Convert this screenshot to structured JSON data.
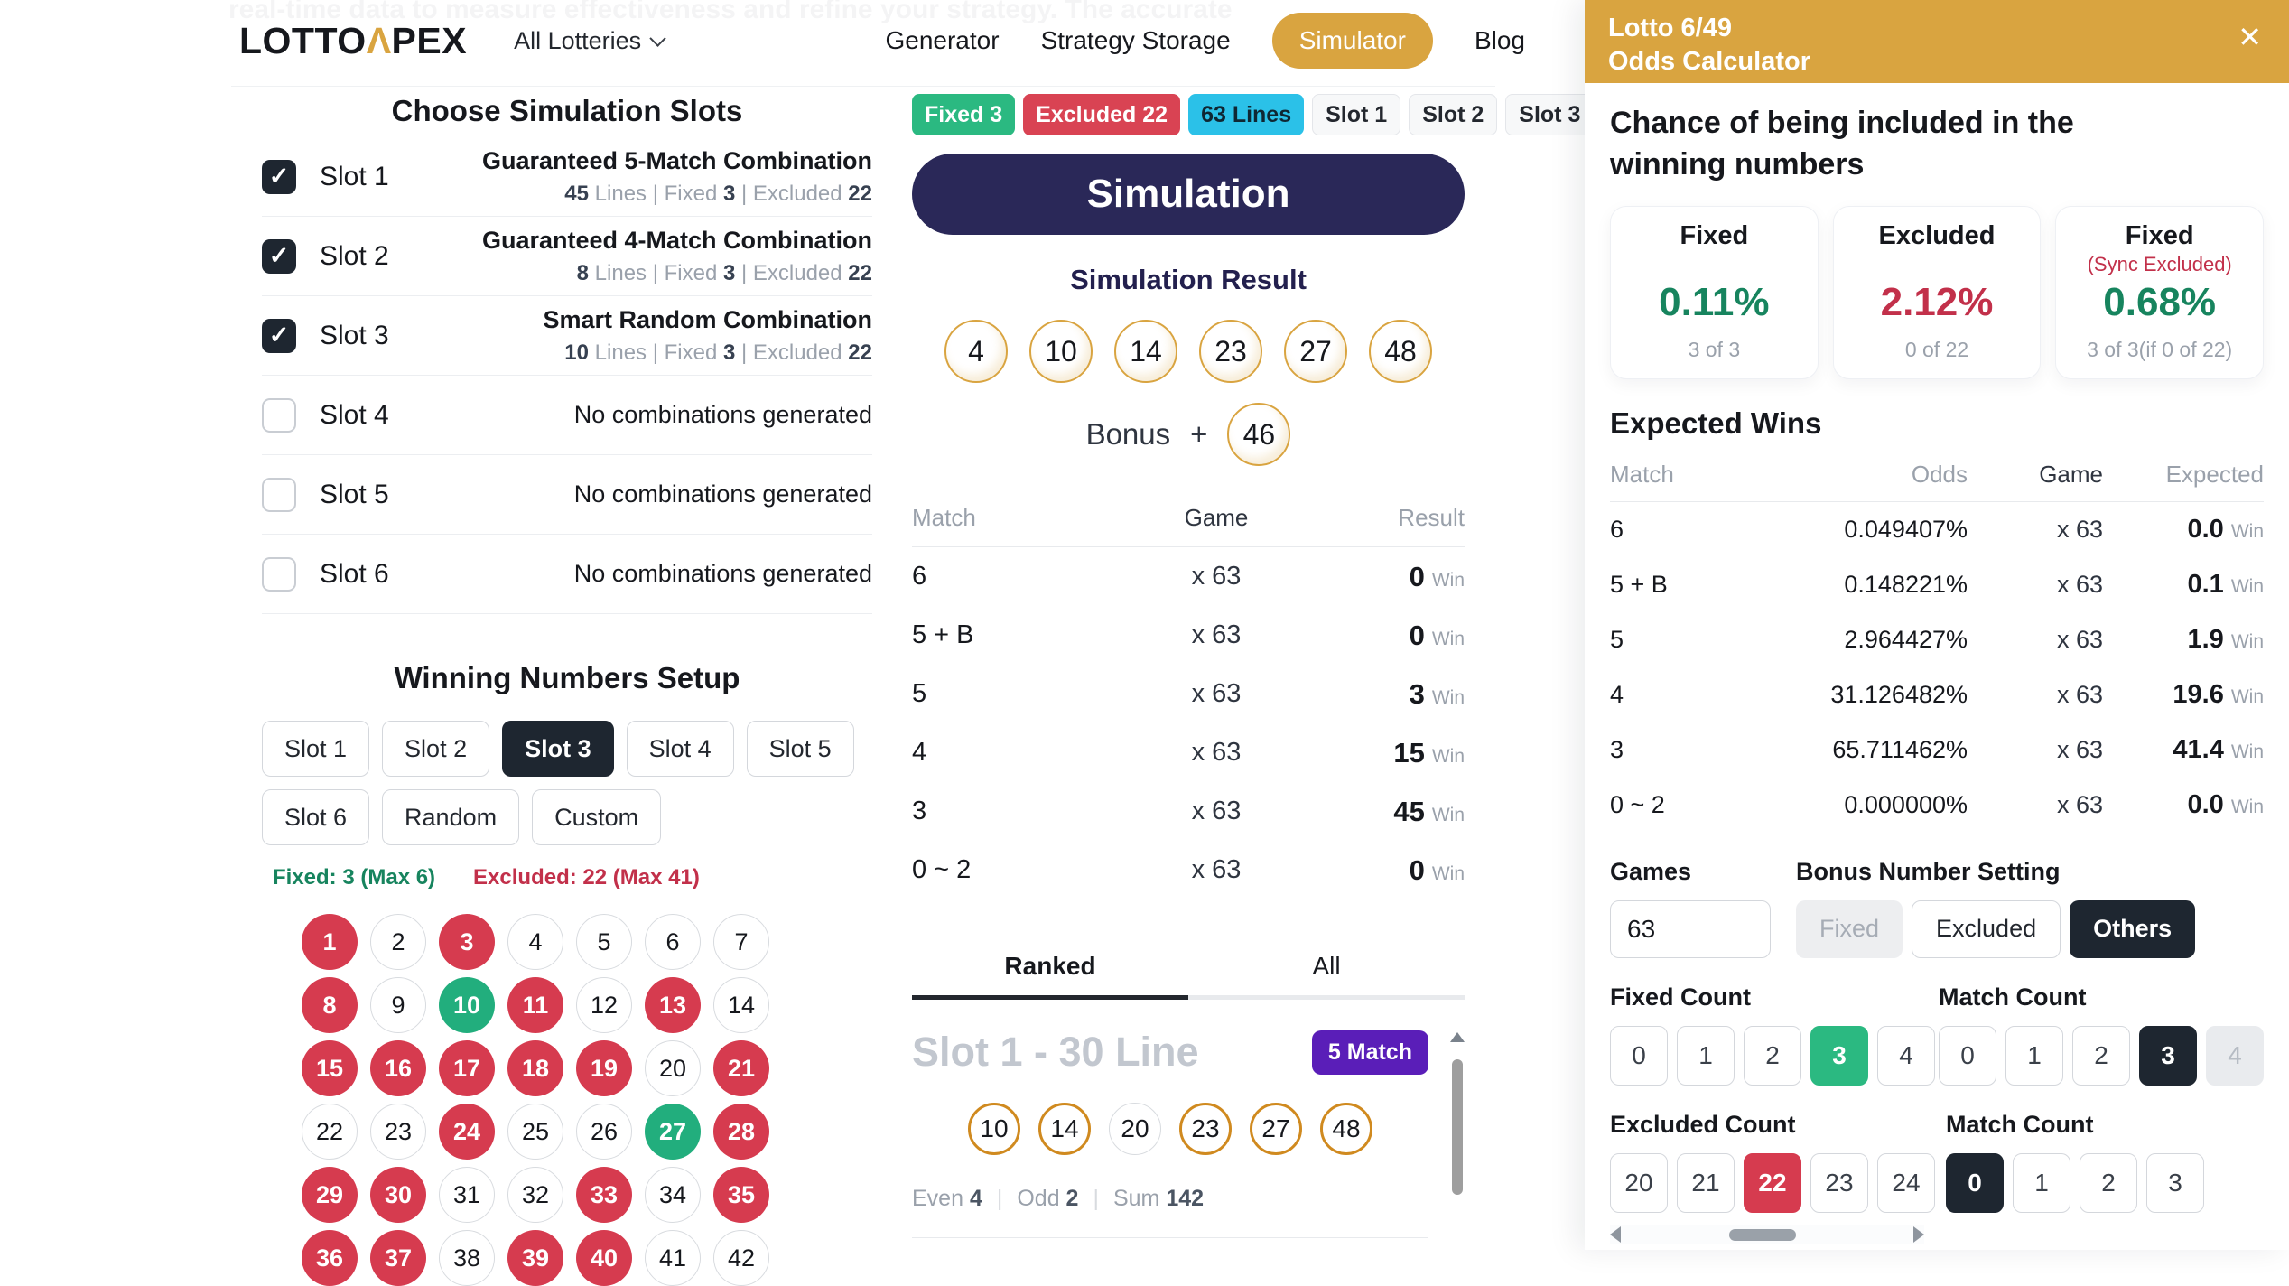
{
  "page": {
    "faint_top_text": "real-time data to measure effectiveness and refine your strategy. The accurate"
  },
  "colors": {
    "gold": "#D9A440",
    "navy": "#2A2858",
    "green": "#2BB981",
    "green_text": "#17845E",
    "red": "#D63B4F",
    "red_text": "#C2304A",
    "cyan": "#2BC1E8",
    "dark": "#1E2630",
    "purple": "#5A1EB8"
  },
  "navbar": {
    "logo": {
      "pre": "LOTTO",
      "caret": "Λ",
      "post": "PEX"
    },
    "lottery_selector": "All Lotteries",
    "links": [
      {
        "label": "Generator",
        "active": false
      },
      {
        "label": "Strategy Storage",
        "active": false
      },
      {
        "label": "Simulator",
        "active": true
      },
      {
        "label": "Blog",
        "active": false
      }
    ]
  },
  "slots_panel": {
    "heading": "Choose Simulation Slots",
    "slots": [
      {
        "label": "Slot 1",
        "checked": true,
        "title": "Guaranteed 5-Match Combination",
        "detail": "45 Lines | Fixed 3 | Excluded 22"
      },
      {
        "label": "Slot 2",
        "checked": true,
        "title": "Guaranteed 4-Match Combination",
        "detail": "8 Lines | Fixed 3 | Excluded 22"
      },
      {
        "label": "Slot 3",
        "checked": true,
        "title": "Smart Random Combination",
        "detail": "10 Lines | Fixed 3 | Excluded 22"
      },
      {
        "label": "Slot 4",
        "checked": false,
        "title": "",
        "detail": "No combinations generated"
      },
      {
        "label": "Slot 5",
        "checked": false,
        "title": "",
        "detail": "No combinations generated"
      },
      {
        "label": "Slot 6",
        "checked": false,
        "title": "",
        "detail": "No combinations generated"
      }
    ]
  },
  "winning_setup": {
    "heading": "Winning Numbers Setup",
    "buttons": [
      {
        "label": "Slot 1",
        "active": false
      },
      {
        "label": "Slot 2",
        "active": false
      },
      {
        "label": "Slot 3",
        "active": true
      },
      {
        "label": "Slot 4",
        "active": false
      },
      {
        "label": "Slot 5",
        "active": false
      },
      {
        "label": "Slot 6",
        "active": false
      },
      {
        "label": "Random",
        "active": false
      },
      {
        "label": "Custom",
        "active": false
      }
    ],
    "fixed_note": "Fixed: 3 (Max 6)",
    "excluded_note": "Excluded: 22 (Max 41)",
    "numbers": [
      {
        "n": 1,
        "state": "excluded"
      },
      {
        "n": 2,
        "state": "plain"
      },
      {
        "n": 3,
        "state": "excluded"
      },
      {
        "n": 4,
        "state": "plain"
      },
      {
        "n": 5,
        "state": "plain"
      },
      {
        "n": 6,
        "state": "plain"
      },
      {
        "n": 7,
        "state": "plain"
      },
      {
        "n": 8,
        "state": "excluded"
      },
      {
        "n": 9,
        "state": "plain"
      },
      {
        "n": 10,
        "state": "fixed"
      },
      {
        "n": 11,
        "state": "excluded"
      },
      {
        "n": 12,
        "state": "plain"
      },
      {
        "n": 13,
        "state": "excluded"
      },
      {
        "n": 14,
        "state": "plain"
      },
      {
        "n": 15,
        "state": "excluded"
      },
      {
        "n": 16,
        "state": "excluded"
      },
      {
        "n": 17,
        "state": "excluded"
      },
      {
        "n": 18,
        "state": "excluded"
      },
      {
        "n": 19,
        "state": "excluded"
      },
      {
        "n": 20,
        "state": "plain"
      },
      {
        "n": 21,
        "state": "excluded"
      },
      {
        "n": 22,
        "state": "plain"
      },
      {
        "n": 23,
        "state": "plain"
      },
      {
        "n": 24,
        "state": "excluded"
      },
      {
        "n": 25,
        "state": "plain"
      },
      {
        "n": 26,
        "state": "plain"
      },
      {
        "n": 27,
        "state": "fixed"
      },
      {
        "n": 28,
        "state": "excluded"
      },
      {
        "n": 29,
        "state": "excluded"
      },
      {
        "n": 30,
        "state": "excluded"
      },
      {
        "n": 31,
        "state": "plain"
      },
      {
        "n": 32,
        "state": "plain"
      },
      {
        "n": 33,
        "state": "excluded"
      },
      {
        "n": 34,
        "state": "plain"
      },
      {
        "n": 35,
        "state": "excluded"
      },
      {
        "n": 36,
        "state": "excluded"
      },
      {
        "n": 37,
        "state": "excluded"
      },
      {
        "n": 38,
        "state": "plain"
      },
      {
        "n": 39,
        "state": "excluded"
      },
      {
        "n": 40,
        "state": "excluded"
      },
      {
        "n": 41,
        "state": "plain"
      },
      {
        "n": 42,
        "state": "plain"
      }
    ]
  },
  "simulation": {
    "chips": [
      {
        "label": "Fixed 3",
        "style": "green"
      },
      {
        "label": "Excluded 22",
        "style": "red"
      },
      {
        "label": "63 Lines",
        "style": "cyan"
      },
      {
        "label": "Slot 1",
        "style": "plain"
      },
      {
        "label": "Slot 2",
        "style": "plain"
      },
      {
        "label": "Slot 3",
        "style": "plain"
      }
    ],
    "button_label": "Simulation",
    "result_heading": "Simulation Result",
    "result_numbers": [
      4,
      10,
      14,
      23,
      27,
      48
    ],
    "bonus_label": "Bonus",
    "plus": "+",
    "bonus_number": 46,
    "match_table": {
      "headers": [
        "Match",
        "Game",
        "Result"
      ],
      "win_suffix": "Win",
      "rows": [
        {
          "match": "6",
          "game": "x 63",
          "result": "0"
        },
        {
          "match": "5 + B",
          "game": "x 63",
          "result": "0"
        },
        {
          "match": "5",
          "game": "x 63",
          "result": "3"
        },
        {
          "match": "4",
          "game": "x 63",
          "result": "15"
        },
        {
          "match": "3",
          "game": "x 63",
          "result": "45"
        },
        {
          "match": "0 ~ 2",
          "game": "x 63",
          "result": "0"
        }
      ]
    }
  },
  "ranked": {
    "tabs": [
      {
        "label": "Ranked",
        "active": true
      },
      {
        "label": "All",
        "active": false
      }
    ],
    "entry": {
      "title": "Slot 1 - 30 Line",
      "badge": "5 Match",
      "numbers": [
        {
          "n": 10,
          "hit": true
        },
        {
          "n": 14,
          "hit": true
        },
        {
          "n": 20,
          "hit": false
        },
        {
          "n": 23,
          "hit": true
        },
        {
          "n": 27,
          "hit": true
        },
        {
          "n": 48,
          "hit": true
        }
      ],
      "stats": [
        {
          "label": "Even",
          "value": "4"
        },
        {
          "label": "Odd",
          "value": "2"
        },
        {
          "label": "Sum",
          "value": "142"
        }
      ]
    }
  },
  "odds_panel": {
    "title_line1": "Lotto 6/49",
    "title_line2": "Odds Calculator",
    "close_icon": "✕",
    "chance_heading": "Chance of being included in the winning numbers",
    "cards": [
      {
        "title": "Fixed",
        "sync": "",
        "pct": "0.11%",
        "pct_color": "green",
        "sub": "3 of 3"
      },
      {
        "title": "Excluded",
        "sync": "",
        "pct": "2.12%",
        "pct_color": "red",
        "sub": "0 of 22"
      },
      {
        "title": "Fixed",
        "sync": "(Sync Excluded)",
        "pct": "0.68%",
        "pct_color": "green",
        "sub": "3 of 3(if 0 of 22)"
      }
    ],
    "expected": {
      "heading": "Expected Wins",
      "headers": [
        "Match",
        "Odds",
        "Game",
        "Expected"
      ],
      "win_suffix": "Win",
      "rows": [
        {
          "match": "6",
          "odds": "0.049407%",
          "game": "x 63",
          "expected": "0.0"
        },
        {
          "match": "5 + B",
          "odds": "0.148221%",
          "game": "x 63",
          "expected": "0.1"
        },
        {
          "match": "5",
          "odds": "2.964427%",
          "game": "x 63",
          "expected": "1.9"
        },
        {
          "match": "4",
          "odds": "31.126482%",
          "game": "x 63",
          "expected": "19.6"
        },
        {
          "match": "3",
          "odds": "65.711462%",
          "game": "x 63",
          "expected": "41.4"
        },
        {
          "match": "0 ~ 2",
          "odds": "0.000000%",
          "game": "x 63",
          "expected": "0.0"
        }
      ]
    },
    "games": {
      "label": "Games",
      "value": "63"
    },
    "bonus_setting": {
      "label": "Bonus Number Setting",
      "options": [
        {
          "label": "Fixed",
          "state": "disabled"
        },
        {
          "label": "Excluded",
          "state": "normal"
        },
        {
          "label": "Others",
          "state": "active-dark"
        }
      ]
    },
    "fixed_count": {
      "label": "Fixed Count",
      "options": [
        {
          "label": "0",
          "state": "normal"
        },
        {
          "label": "1",
          "state": "normal"
        },
        {
          "label": "2",
          "state": "normal"
        },
        {
          "label": "3",
          "state": "active-green"
        },
        {
          "label": "4",
          "state": "normal"
        }
      ]
    },
    "match_count_top": {
      "label": "Match Count",
      "options": [
        {
          "label": "0",
          "state": "normal"
        },
        {
          "label": "1",
          "state": "normal"
        },
        {
          "label": "2",
          "state": "normal"
        },
        {
          "label": "3",
          "state": "active-dark"
        },
        {
          "label": "4",
          "state": "disabled"
        }
      ]
    },
    "excluded_count": {
      "label": "Excluded Count",
      "options": [
        {
          "label": "20",
          "state": "normal"
        },
        {
          "label": "21",
          "state": "normal"
        },
        {
          "label": "22",
          "state": "active-red"
        },
        {
          "label": "23",
          "state": "normal"
        },
        {
          "label": "24",
          "state": "normal"
        }
      ]
    },
    "match_count_bottom": {
      "label": "Match Count",
      "options": [
        {
          "label": "0",
          "state": "active-dark"
        },
        {
          "label": "1",
          "state": "normal"
        },
        {
          "label": "2",
          "state": "normal"
        },
        {
          "label": "3",
          "state": "normal"
        }
      ]
    }
  }
}
